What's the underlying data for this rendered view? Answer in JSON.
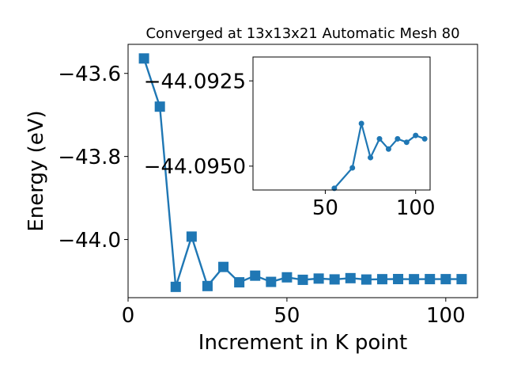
{
  "chart_data": [
    {
      "type": "line",
      "title": "Converged at 13x13x21 Automatic Mesh 80",
      "xlabel": "Increment in K point",
      "ylabel": "Energy (eV)",
      "xlim": [
        0,
        110
      ],
      "ylim": [
        -44.14,
        -43.53
      ],
      "xticks": [
        0,
        50,
        100
      ],
      "yticks": [
        -43.6,
        -43.8,
        -44.0
      ],
      "xtick_labels": [
        "0",
        "50",
        "100"
      ],
      "ytick_labels": [
        "−43.6",
        "−43.8",
        "−44.0"
      ],
      "marker": "square",
      "color": "#1f77b4",
      "grid": false,
      "series": [
        {
          "x": [
            5,
            10,
            15,
            20,
            25,
            30,
            35,
            40,
            45,
            50,
            55,
            60,
            65,
            70,
            75,
            80,
            85,
            90,
            95,
            100,
            105
          ],
          "y": [
            -43.564,
            -43.68,
            -44.114,
            -43.993,
            -44.112,
            -44.066,
            -44.103,
            -44.087,
            -44.102,
            -44.091,
            -44.097,
            -44.094,
            -44.096,
            -44.093,
            -44.0963,
            -44.0955,
            -44.0952,
            -44.0955,
            -44.0953,
            -44.0954,
            -44.0954
          ]
        }
      ]
    },
    {
      "type": "line",
      "title": "",
      "xlabel": "",
      "ylabel": "",
      "xlim": [
        10,
        108
      ],
      "ylim": [
        -44.0957,
        -44.0918
      ],
      "xticks": [
        50,
        100
      ],
      "yticks": [
        -44.095,
        -44.0925
      ],
      "xtick_labels": [
        "50",
        "100"
      ],
      "ytick_labels": [
        "−44.0950",
        "−44.0925"
      ],
      "marker": "circle",
      "color": "#1f77b4",
      "grid": false,
      "series": [
        {
          "x": [
            55,
            65,
            70,
            75,
            80,
            85,
            90,
            95,
            100,
            105
          ],
          "y": [
            -44.09565,
            -44.09505,
            -44.09375,
            -44.09475,
            -44.0942,
            -44.0945,
            -44.0942,
            -44.0943,
            -44.0941,
            -44.0942
          ]
        }
      ]
    }
  ]
}
